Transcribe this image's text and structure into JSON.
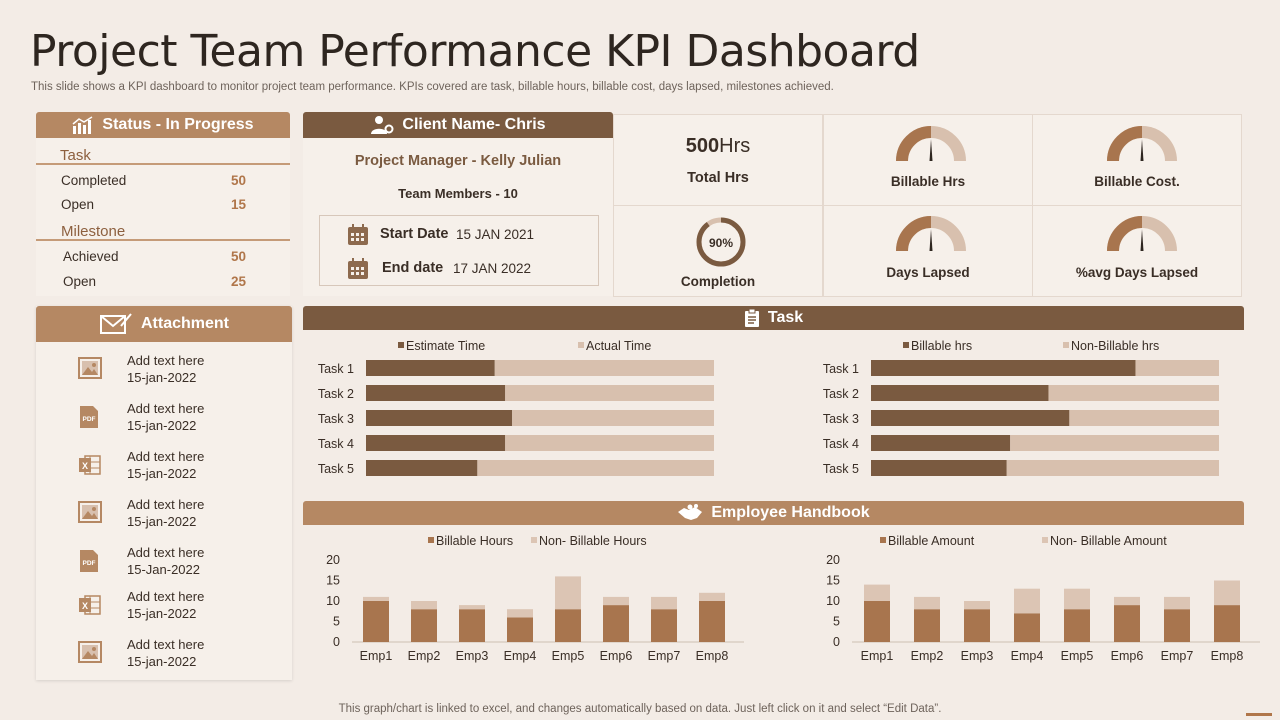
{
  "header": {
    "title": "Project Team Performance KPI Dashboard",
    "subtitle": "This slide shows a KPI dashboard to monitor project team performance. KPIs covered are task, billable hours, billable cost, days lapsed, milestones achieved.",
    "footer": "This graph/chart is linked to excel, and changes automatically based on data. Just left click on it and select “Edit Data”."
  },
  "status": {
    "header": "Status  - In Progress",
    "task_label": "Task",
    "task_rows": [
      {
        "label": "Completed",
        "value": "50"
      },
      {
        "label": "Open",
        "value": "15"
      }
    ],
    "milestone_label": "Milestone",
    "milestone_rows": [
      {
        "label": "Achieved",
        "value": "50"
      },
      {
        "label": "Open",
        "value": "25"
      }
    ]
  },
  "client": {
    "header": "Client Name- Chris",
    "pm": "Project Manager -  Kelly Julian",
    "team": "Team Members - 10",
    "start_label": "Start Date",
    "start_value": "15 JAN 2021",
    "end_label": "End date",
    "end_value": "17 JAN 2022"
  },
  "kpis": {
    "total_hrs_value": "500",
    "total_hrs_unit": "Hrs",
    "total_hrs_label": "Total Hrs",
    "billable_hrs_label": "Billable Hrs",
    "billable_cost_label": "Billable Cost.",
    "completion_value": "90%",
    "completion_fraction": 0.9,
    "completion_label": "Completion",
    "days_lapsed_label": "Days Lapsed",
    "avg_days_lapsed_label": "%avg  Days  Lapsed",
    "gauge_fraction": 0.5
  },
  "attachment": {
    "header": "Attachment",
    "items": [
      {
        "icon": "image-icon",
        "text": "Add text here",
        "date": "15-jan-2022"
      },
      {
        "icon": "pdf-icon",
        "text": "Add text here",
        "date": "15-jan-2022"
      },
      {
        "icon": "excel-icon",
        "text": "Add text here",
        "date": "15-jan-2022"
      },
      {
        "icon": "image-icon",
        "text": "Add text here",
        "date": "15-jan-2022"
      },
      {
        "icon": "pdf-icon",
        "text": "Add text here",
        "date": "15-Jan-2022"
      },
      {
        "icon": "excel-icon",
        "text": "Add text here",
        "date": "15-jan-2022"
      },
      {
        "icon": "image-icon",
        "text": "Add text here",
        "date": "15-jan-2022"
      }
    ]
  },
  "task_section": {
    "header": "Task"
  },
  "handbook_section": {
    "header": "Employee Handbook"
  },
  "colors": {
    "dark_brown": "#7a5a40",
    "mid_brown": "#b58863",
    "light_tan": "#d8c0ae",
    "bar_brown": "#a8754e",
    "bar_light": "#dcc5b4"
  },
  "chart_data": [
    {
      "type": "bar",
      "orientation": "horizontal",
      "stacked": true,
      "categories": [
        "Task 1",
        "Task 2",
        "Task 3",
        "Task 4",
        "Task 5"
      ],
      "series": [
        {
          "name": "Estimate Time",
          "values": [
            37,
            40,
            42,
            40,
            32
          ]
        },
        {
          "name": "Actual Time",
          "values": [
            63,
            60,
            58,
            60,
            68
          ]
        }
      ],
      "xlim": [
        0,
        100
      ],
      "legend": "top"
    },
    {
      "type": "bar",
      "orientation": "horizontal",
      "stacked": true,
      "categories": [
        "Task 1",
        "Task 2",
        "Task 3",
        "Task 4",
        "Task 5"
      ],
      "series": [
        {
          "name": "Billable hrs",
          "values": [
            76,
            51,
            57,
            40,
            39
          ]
        },
        {
          "name": "Non-Billable hrs",
          "values": [
            24,
            49,
            43,
            60,
            61
          ]
        }
      ],
      "xlim": [
        0,
        100
      ],
      "legend": "top"
    },
    {
      "type": "bar",
      "stacked": true,
      "categories": [
        "Emp1",
        "Emp2",
        "Emp3",
        "Emp4",
        "Emp5",
        "Emp6",
        "Emp7",
        "Emp8"
      ],
      "series": [
        {
          "name": "Billable Hours",
          "values": [
            10,
            8,
            8,
            6,
            8,
            9,
            8,
            10
          ]
        },
        {
          "name": "Non- Billable Hours",
          "values": [
            1,
            2,
            1,
            2,
            8,
            2,
            3,
            2
          ]
        }
      ],
      "yticks": [
        "0",
        "5",
        "10",
        "15",
        "20"
      ],
      "ylim": [
        0,
        20
      ],
      "legend": "top"
    },
    {
      "type": "bar",
      "stacked": true,
      "categories": [
        "Emp1",
        "Emp2",
        "Emp3",
        "Emp4",
        "Emp5",
        "Emp6",
        "Emp7",
        "Emp8"
      ],
      "series": [
        {
          "name": "Billable Amount",
          "values": [
            10,
            8,
            8,
            7,
            8,
            9,
            8,
            9
          ]
        },
        {
          "name": "Non- Billable Amount",
          "values": [
            4,
            3,
            2,
            6,
            5,
            2,
            3,
            6
          ]
        }
      ],
      "yticks": [
        "0",
        "5",
        "10",
        "15",
        "20"
      ],
      "ylim": [
        0,
        20
      ],
      "legend": "top"
    }
  ]
}
